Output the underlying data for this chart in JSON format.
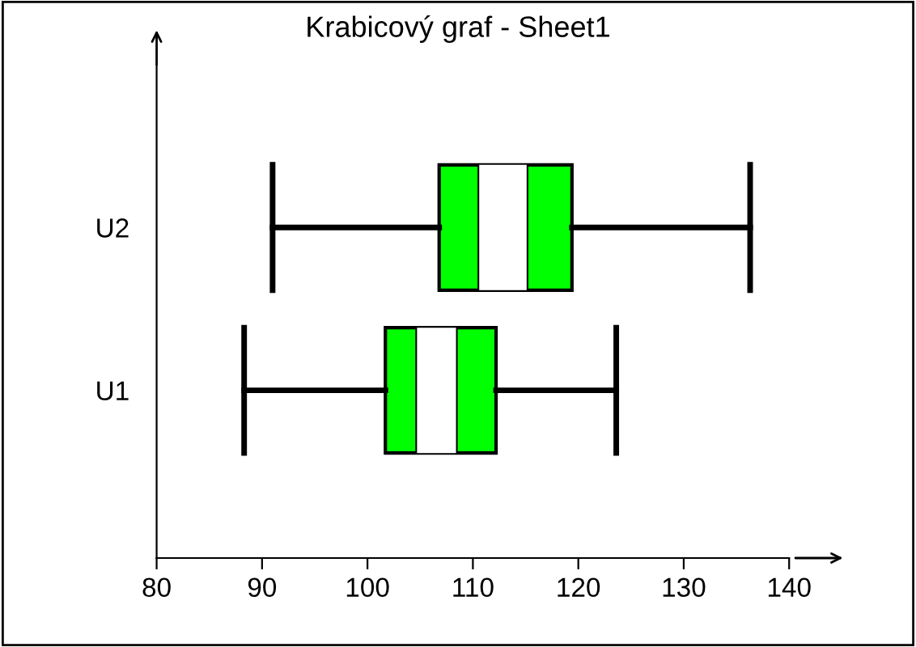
{
  "chart_data": {
    "type": "box",
    "title": "Krabicový graf - Sheet1",
    "orientation": "horizontal",
    "categories": [
      "U2",
      "U1"
    ],
    "series": [
      {
        "color": "#00ff00",
        "boxes": [
          {
            "low": 91.0,
            "q1": 106.8,
            "median": 110.6,
            "mean": 115.1,
            "q3": 119.4,
            "high": 136.3
          },
          {
            "low": 88.3,
            "q1": 101.7,
            "median": 104.7,
            "mean": 108.4,
            "q3": 112.2,
            "high": 123.6
          }
        ]
      }
    ],
    "xlim": [
      80,
      140
    ],
    "xticks": [
      80,
      90,
      100,
      110,
      120,
      130,
      140
    ],
    "grid": false
  }
}
